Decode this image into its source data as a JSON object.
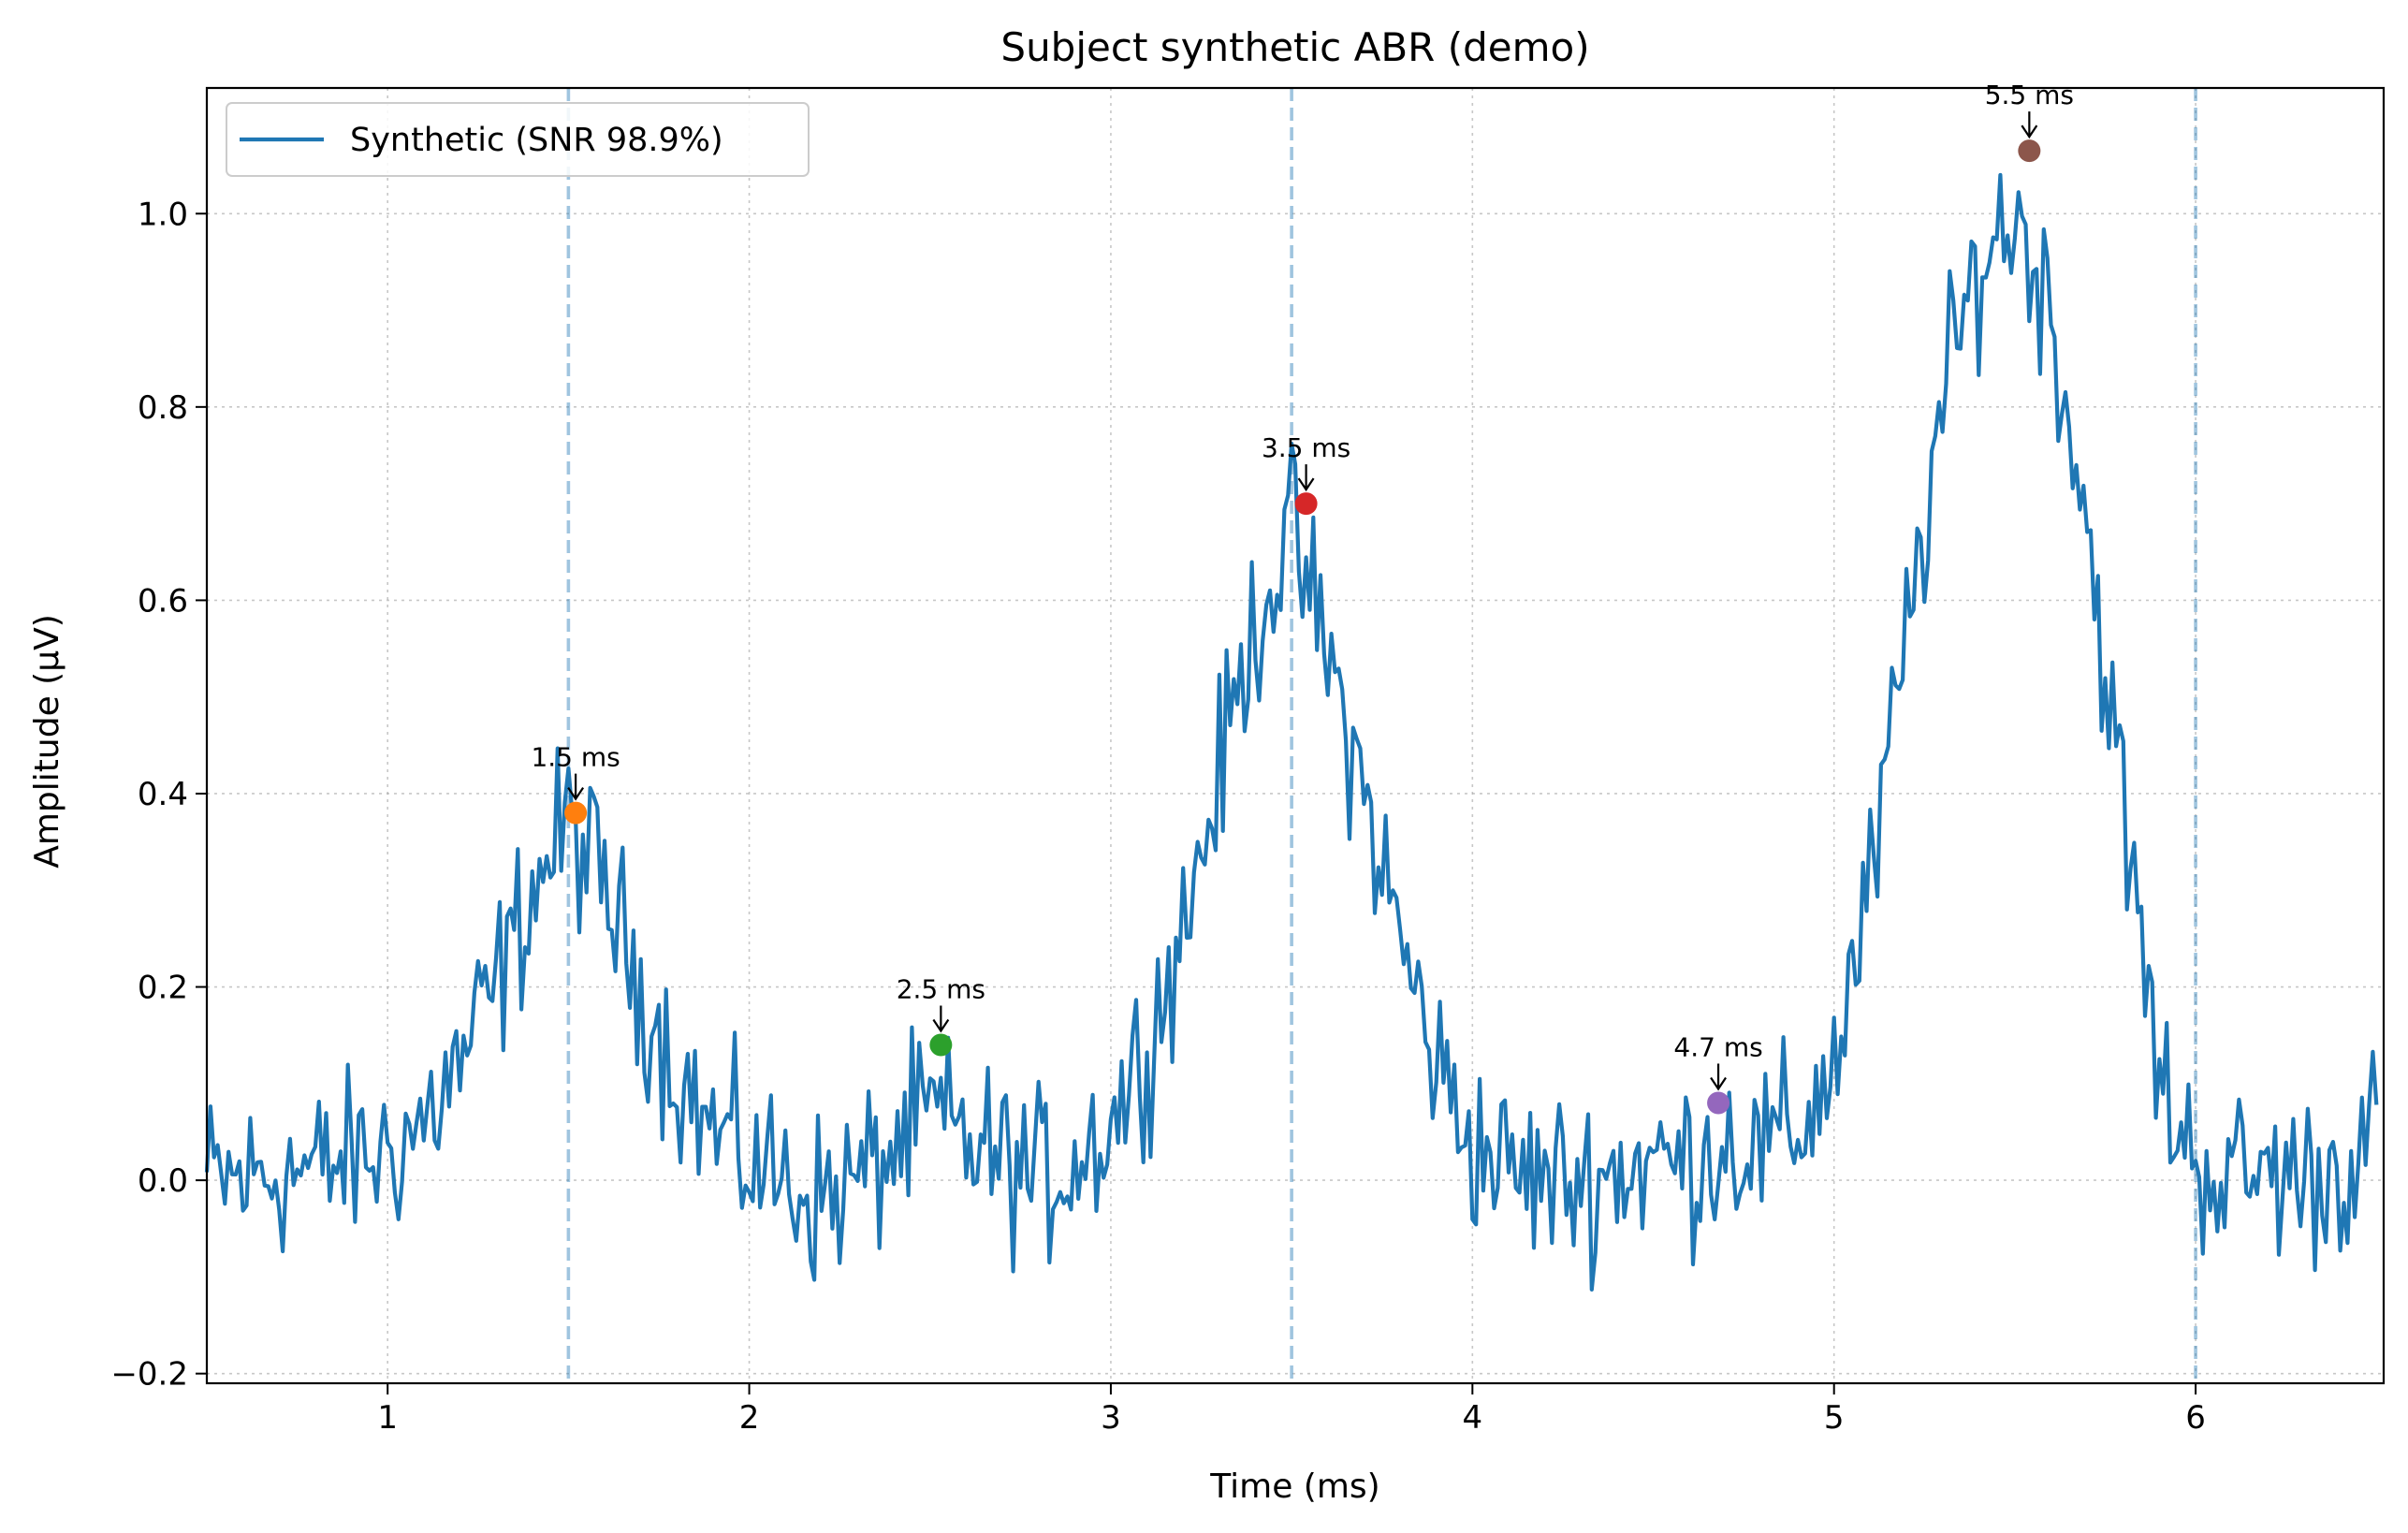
{
  "chart_data": {
    "type": "line",
    "title": "Subject synthetic ABR (demo)",
    "xlabel": "Time (ms)",
    "ylabel": "Amplitude (μV)",
    "xlim": [
      0.5,
      6.52
    ],
    "ylim": [
      -0.21,
      1.13
    ],
    "xticks": [
      1,
      2,
      3,
      4,
      5,
      6
    ],
    "xtick_labels": [
      "1",
      "2",
      "3",
      "4",
      "5",
      "6"
    ],
    "yticks": [
      -0.2,
      0.0,
      0.2,
      0.4,
      0.6,
      0.8,
      1.0
    ],
    "ytick_labels": [
      "−0.2",
      "0.0",
      "0.2",
      "0.4",
      "0.6",
      "0.8",
      "1.0"
    ],
    "grid": true,
    "legend_position": "top-left",
    "reference_lines_x": [
      1.5,
      3.5,
      6.0
    ],
    "series": [
      {
        "name": "Synthetic (SNR 98.9%)",
        "color": "#1f77b4",
        "x": [
          0.5,
          0.6,
          0.7,
          0.8,
          0.9,
          1.0,
          1.1,
          1.2,
          1.3,
          1.4,
          1.5,
          1.6,
          1.7,
          1.8,
          1.9,
          2.0,
          2.1,
          2.2,
          2.3,
          2.4,
          2.5,
          2.6,
          2.7,
          2.8,
          2.9,
          3.0,
          3.1,
          3.2,
          3.3,
          3.4,
          3.5,
          3.6,
          3.7,
          3.8,
          3.9,
          4.0,
          4.1,
          4.2,
          4.3,
          4.4,
          4.5,
          4.6,
          4.7,
          4.8,
          4.9,
          5.0,
          5.1,
          5.2,
          5.3,
          5.4,
          5.5,
          5.6,
          5.7,
          5.8,
          5.9,
          6.0,
          6.1,
          6.2,
          6.3,
          6.4,
          6.5
        ],
        "y": [
          0.0,
          0.0,
          0.01,
          0.01,
          0.02,
          0.03,
          0.06,
          0.12,
          0.2,
          0.3,
          0.37,
          0.3,
          0.2,
          0.11,
          0.05,
          0.02,
          0.0,
          -0.02,
          0.0,
          0.03,
          0.07,
          0.04,
          0.02,
          0.0,
          0.02,
          0.06,
          0.14,
          0.26,
          0.42,
          0.58,
          0.67,
          0.54,
          0.4,
          0.25,
          0.12,
          0.04,
          0.01,
          0.0,
          0.0,
          0.01,
          0.02,
          0.02,
          0.04,
          0.03,
          0.05,
          0.12,
          0.3,
          0.56,
          0.8,
          0.95,
          1.0,
          0.9,
          0.68,
          0.38,
          0.1,
          0.02,
          0.0,
          0.01,
          0.0,
          0.01,
          0.05
        ]
      }
    ],
    "peaks": [
      {
        "label": "1.5 ms",
        "x": 1.52,
        "y": 0.38,
        "color": "#ff7f0e"
      },
      {
        "label": "2.5 ms",
        "x": 2.53,
        "y": 0.14,
        "color": "#2ca02c"
      },
      {
        "label": "3.5 ms",
        "x": 3.54,
        "y": 0.7,
        "color": "#d62728"
      },
      {
        "label": "4.7 ms",
        "x": 4.68,
        "y": 0.08,
        "color": "#9467bd"
      },
      {
        "label": "5.5 ms",
        "x": 5.54,
        "y": 1.065,
        "color": "#8c564b"
      }
    ]
  }
}
